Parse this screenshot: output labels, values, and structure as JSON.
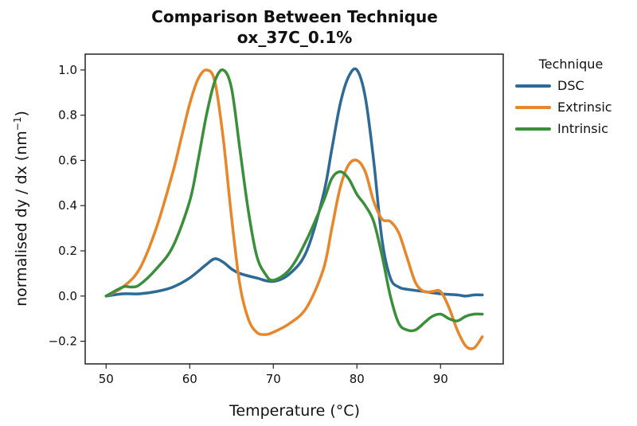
{
  "chart_data": {
    "type": "line",
    "title": "Comparison Between Technique",
    "subtitle": "ox_37C_0.1%",
    "xlabel": "Temperature (°C)",
    "ylabel_main": "normalised dy / dx (nm",
    "ylabel_sup": "−1",
    "ylabel_close": ")",
    "xlim": [
      47.5,
      97.5
    ],
    "ylim": [
      -0.3,
      1.07
    ],
    "x_ticks": [
      50,
      60,
      70,
      80,
      90
    ],
    "x_tick_labels": [
      "50",
      "60",
      "70",
      "80",
      "90"
    ],
    "y_ticks": [
      -0.2,
      0.0,
      0.2,
      0.4,
      0.6,
      0.8,
      1.0
    ],
    "y_tick_labels": [
      "−0.2",
      "0.0",
      "0.2",
      "0.4",
      "0.6",
      "0.8",
      "1.0"
    ],
    "grid": false,
    "legend": {
      "title": "Technique",
      "placement": "outside-right"
    },
    "series": [
      {
        "name": "DSC",
        "color": "#2e6a96",
        "x": [
          50,
          52,
          54,
          56,
          58,
          60,
          62,
          63,
          64,
          65,
          66,
          68,
          70,
          72,
          74,
          76,
          77,
          78,
          79,
          80,
          81,
          82,
          83,
          84,
          85,
          86,
          88,
          90,
          92,
          93,
          94,
          95
        ],
        "y": [
          0.0,
          0.01,
          0.01,
          0.02,
          0.04,
          0.08,
          0.14,
          0.165,
          0.15,
          0.12,
          0.1,
          0.08,
          0.065,
          0.1,
          0.2,
          0.45,
          0.65,
          0.85,
          0.97,
          1.0,
          0.88,
          0.6,
          0.25,
          0.08,
          0.04,
          0.03,
          0.02,
          0.01,
          0.005,
          0.0,
          0.005,
          0.005
        ]
      },
      {
        "name": "Extrinsic",
        "color": "#e8862a",
        "x": [
          50,
          52,
          54,
          56,
          58,
          59,
          60,
          61,
          62,
          63,
          64,
          65,
          66,
          67,
          68,
          69,
          70,
          72,
          74,
          76,
          77,
          78,
          79,
          80,
          81,
          82,
          83,
          84,
          85,
          86,
          87,
          88,
          89,
          90,
          91,
          92,
          93,
          94,
          95
        ],
        "y": [
          0.0,
          0.04,
          0.12,
          0.3,
          0.55,
          0.7,
          0.85,
          0.96,
          1.0,
          0.95,
          0.7,
          0.35,
          0.05,
          -0.1,
          -0.16,
          -0.17,
          -0.16,
          -0.12,
          -0.05,
          0.12,
          0.3,
          0.48,
          0.58,
          0.6,
          0.55,
          0.42,
          0.34,
          0.33,
          0.28,
          0.17,
          0.06,
          0.02,
          0.02,
          0.02,
          -0.05,
          -0.15,
          -0.22,
          -0.23,
          -0.18
        ]
      },
      {
        "name": "Intrinsic",
        "color": "#3b8f3b",
        "x": [
          50,
          52,
          53,
          54,
          56,
          58,
          60,
          61,
          62,
          63,
          64,
          65,
          66,
          67,
          68,
          69,
          70,
          72,
          74,
          76,
          77,
          78,
          79,
          80,
          81,
          82,
          83,
          84,
          85,
          86,
          87,
          88,
          89,
          90,
          91,
          92,
          93,
          94,
          95
        ],
        "y": [
          0.0,
          0.04,
          0.04,
          0.05,
          0.12,
          0.22,
          0.42,
          0.6,
          0.8,
          0.95,
          1.0,
          0.92,
          0.65,
          0.38,
          0.18,
          0.1,
          0.07,
          0.12,
          0.25,
          0.42,
          0.52,
          0.55,
          0.52,
          0.45,
          0.4,
          0.33,
          0.18,
          0.0,
          -0.12,
          -0.15,
          -0.15,
          -0.12,
          -0.09,
          -0.08,
          -0.1,
          -0.11,
          -0.09,
          -0.08,
          -0.08
        ]
      }
    ]
  }
}
